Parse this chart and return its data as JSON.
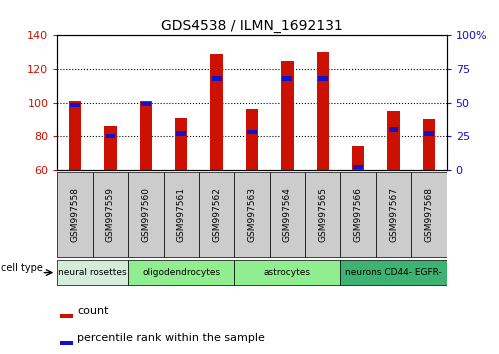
{
  "title": "GDS4538 / ILMN_1692131",
  "samples": [
    "GSM997558",
    "GSM997559",
    "GSM997560",
    "GSM997561",
    "GSM997562",
    "GSM997563",
    "GSM997564",
    "GSM997565",
    "GSM997566",
    "GSM997567",
    "GSM997568"
  ],
  "count_values": [
    101,
    86,
    101,
    91,
    129,
    96,
    125,
    130,
    74,
    95,
    90
  ],
  "percentile_values": [
    48,
    25,
    49,
    27,
    68,
    28,
    68,
    68,
    2,
    30,
    27
  ],
  "cell_types": [
    {
      "label": "neural rosettes",
      "start": 0,
      "end": 2,
      "color": "#d4edda"
    },
    {
      "label": "oligodendrocytes",
      "start": 2,
      "end": 5,
      "color": "#90ee90"
    },
    {
      "label": "astrocytes",
      "start": 5,
      "end": 8,
      "color": "#90ee90"
    },
    {
      "label": "neurons CD44- EGFR-",
      "start": 8,
      "end": 11,
      "color": "#3cb371"
    }
  ],
  "ylim_left": [
    60,
    140
  ],
  "ylim_right": [
    0,
    100
  ],
  "bar_color": "#cc1100",
  "percentile_color": "#1111cc",
  "bar_width": 0.35,
  "bg_color": "#ffffff",
  "tick_color_left": "#cc1100",
  "tick_color_right": "#1111cc",
  "left_ticks": [
    60,
    80,
    100,
    120,
    140
  ],
  "right_ticks": [
    0,
    25,
    50,
    75,
    100
  ],
  "xtick_box_color": "#cccccc",
  "cell_type_label_color": "#000000",
  "legend_square_size": 8,
  "pct_bar_height": 2.5
}
